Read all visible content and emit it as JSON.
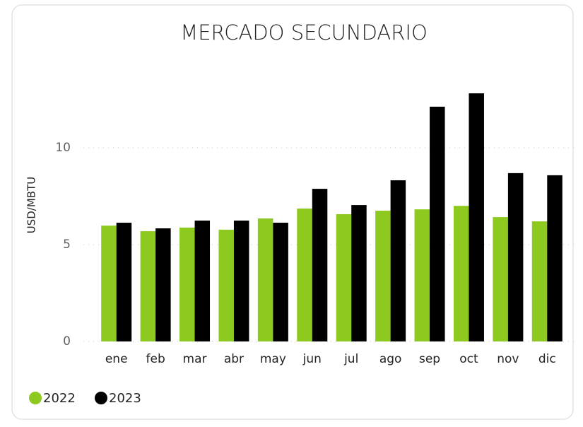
{
  "chart_data": {
    "type": "bar",
    "title": "MERCADO SECUNDARIO",
    "y_label": "USD/MBTU",
    "categories": [
      "ene",
      "feb",
      "mar",
      "abr",
      "may",
      "jun",
      "jul",
      "ago",
      "sep",
      "oct",
      "nov",
      "dic"
    ],
    "series": [
      {
        "name": "2022",
        "color": "#8dc91f",
        "values": [
          5.98,
          5.69,
          5.88,
          5.77,
          6.35,
          6.86,
          6.57,
          6.75,
          6.82,
          7.0,
          6.42,
          6.2
        ]
      },
      {
        "name": "2023",
        "color": "#000000",
        "values": [
          6.13,
          5.84,
          6.24,
          6.24,
          6.13,
          7.88,
          7.04,
          8.32,
          12.12,
          12.81,
          8.69,
          8.58
        ]
      }
    ],
    "ylim": [
      0,
      13.5
    ],
    "yticks": [
      0,
      5,
      10
    ],
    "grid": true
  }
}
